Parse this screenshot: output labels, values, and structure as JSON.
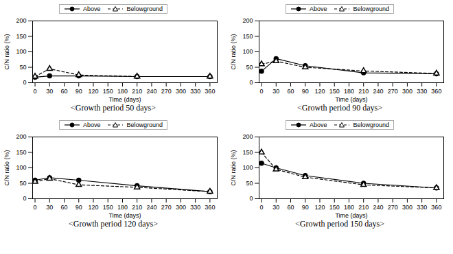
{
  "chart_data": [
    {
      "type": "line",
      "title": "<Growth period 50 days>",
      "xlabel": "Time (days)",
      "ylabel": "C/N ratio (%)",
      "x": [
        0,
        30,
        90,
        210,
        360
      ],
      "series": [
        {
          "name": "Above",
          "color": "#000000",
          "marker": "circle",
          "line_style": "solid",
          "values": [
            18,
            22,
            22,
            20,
            20
          ],
          "errors": [
            1,
            1,
            1,
            1,
            1
          ]
        },
        {
          "name": "Belowground",
          "color": "#000000",
          "marker": "triangle",
          "line_style": "dashed",
          "values": [
            20,
            45,
            25,
            20,
            20
          ],
          "errors": [
            1,
            2,
            1,
            1,
            1
          ]
        }
      ],
      "xlim": [
        -5,
        375
      ],
      "xticks": [
        0,
        30,
        60,
        90,
        120,
        150,
        180,
        210,
        240,
        270,
        300,
        330,
        360
      ],
      "ylim": [
        0,
        200
      ],
      "yticks": [
        0,
        50,
        100,
        150,
        200
      ],
      "grid": false,
      "legend": "top"
    },
    {
      "type": "line",
      "title": "<Growth period 90 days>",
      "xlabel": "Time (days)",
      "ylabel": "C/N ratio (%)",
      "x": [
        0,
        30,
        90,
        210,
        360
      ],
      "series": [
        {
          "name": "Above",
          "color": "#000000",
          "marker": "circle",
          "line_style": "solid",
          "values": [
            37,
            78,
            55,
            32,
            29
          ],
          "errors": [
            2,
            3,
            2,
            2,
            1
          ]
        },
        {
          "name": "Belowground",
          "color": "#000000",
          "marker": "triangle",
          "line_style": "dashed",
          "values": [
            60,
            70,
            50,
            38,
            30
          ],
          "errors": [
            3,
            3,
            2,
            2,
            1
          ]
        }
      ],
      "xlim": [
        -5,
        375
      ],
      "xticks": [
        0,
        30,
        60,
        90,
        120,
        150,
        180,
        210,
        240,
        270,
        300,
        330,
        360
      ],
      "ylim": [
        0,
        200
      ],
      "yticks": [
        0,
        50,
        100,
        150,
        200
      ],
      "grid": false,
      "legend": "top"
    },
    {
      "type": "line",
      "title": "<Growth period 120 days>",
      "xlabel": "Time (days)",
      "ylabel": "C/N ratio (%)",
      "x": [
        0,
        30,
        90,
        210,
        360
      ],
      "series": [
        {
          "name": "Above",
          "color": "#000000",
          "marker": "circle",
          "line_style": "solid",
          "values": [
            60,
            68,
            60,
            42,
            23
          ],
          "errors": [
            2,
            3,
            2,
            2,
            1
          ]
        },
        {
          "name": "Belowground",
          "color": "#000000",
          "marker": "triangle",
          "line_style": "dashed",
          "values": [
            55,
            65,
            45,
            37,
            23
          ],
          "errors": [
            2,
            2,
            2,
            2,
            1
          ]
        }
      ],
      "xlim": [
        -5,
        375
      ],
      "xticks": [
        0,
        30,
        60,
        90,
        120,
        150,
        180,
        210,
        240,
        270,
        300,
        330,
        360
      ],
      "ylim": [
        0,
        200
      ],
      "yticks": [
        0,
        50,
        100,
        150,
        200
      ],
      "grid": false,
      "legend": "top"
    },
    {
      "type": "line",
      "title": "<Growth period 150 days>",
      "xlabel": "Time (days)",
      "ylabel": "C/N ratio (%)",
      "x": [
        0,
        30,
        90,
        210,
        360
      ],
      "series": [
        {
          "name": "Above",
          "color": "#000000",
          "marker": "circle",
          "line_style": "solid",
          "values": [
            115,
            100,
            75,
            50,
            35
          ],
          "errors": [
            3,
            3,
            3,
            2,
            2
          ]
        },
        {
          "name": "Belowground",
          "color": "#000000",
          "marker": "triangle",
          "line_style": "dashed",
          "values": [
            150,
            95,
            70,
            45,
            35
          ],
          "errors": [
            4,
            3,
            3,
            2,
            2
          ]
        }
      ],
      "xlim": [
        -5,
        375
      ],
      "xticks": [
        0,
        30,
        60,
        90,
        120,
        150,
        180,
        210,
        240,
        270,
        300,
        330,
        360
      ],
      "ylim": [
        0,
        200
      ],
      "yticks": [
        0,
        50,
        100,
        150,
        200
      ],
      "grid": false,
      "legend": "top"
    }
  ]
}
